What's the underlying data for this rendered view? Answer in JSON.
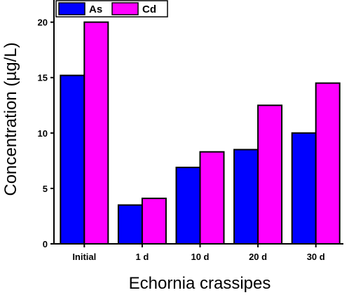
{
  "chart_data": {
    "type": "bar",
    "categories": [
      "Initial",
      "1 d",
      "10 d",
      "20 d",
      "30 d"
    ],
    "series": [
      {
        "name": "As",
        "values": [
          15.2,
          3.5,
          6.9,
          8.5,
          10.0
        ],
        "color": "#0000ff"
      },
      {
        "name": "Cd",
        "values": [
          20.0,
          4.1,
          8.3,
          12.5,
          14.5
        ],
        "color": "#ff00ff"
      }
    ],
    "title": "",
    "xlabel": "Echornia crassipes",
    "ylabel": "Concentration (µg/L)",
    "ylim": [
      0,
      22
    ],
    "yticks": [
      0,
      5,
      10,
      15,
      20
    ],
    "grid": false,
    "legend_position": "top-left"
  }
}
